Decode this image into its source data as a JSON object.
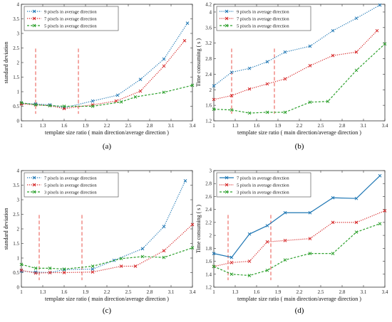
{
  "chart_data": [
    {
      "type": "line",
      "panel_label": "(a)",
      "xlabel": "template size ratio ( main direction/average direction )",
      "ylabel": "standard deviation",
      "xlim": [
        1,
        3.4
      ],
      "ylim": [
        0,
        4
      ],
      "xticks": [
        "1",
        "1.3",
        "1.6",
        "1.9",
        "2.2",
        "2.5",
        "2.8",
        "3.1",
        "3.4"
      ],
      "yticks": [
        "0",
        "0.5",
        "1",
        "1.5",
        "2",
        "2.5",
        "3",
        "3.5",
        "4"
      ],
      "vlines": [
        1.2,
        1.8
      ],
      "legend_position": "top-left",
      "series": [
        {
          "name": "9 pixels in average direction",
          "color": "#1f77b4",
          "marker": "x",
          "style": "dotted",
          "x": [
            1,
            1.2,
            1.4,
            1.6,
            2.0,
            2.35,
            2.67,
            3.0,
            3.33
          ],
          "y": [
            0.6,
            0.58,
            0.55,
            0.45,
            0.68,
            0.88,
            1.42,
            2.12,
            3.35
          ]
        },
        {
          "name": "7 pixels in average direction",
          "color": "#d62728",
          "marker": "x",
          "style": "dotted",
          "x": [
            1,
            1.2,
            1.4,
            1.6,
            2.0,
            2.33,
            2.67,
            3.0,
            3.29
          ],
          "y": [
            0.58,
            0.55,
            0.52,
            0.42,
            0.55,
            0.68,
            1.02,
            1.88,
            2.75
          ]
        },
        {
          "name": "5 pixels in average direction",
          "color": "#2ca02c",
          "marker": "x",
          "style": "dashed",
          "x": [
            1,
            1.2,
            1.4,
            1.6,
            2.0,
            2.4,
            2.6,
            3.0,
            3.4
          ],
          "y": [
            0.62,
            0.55,
            0.52,
            0.5,
            0.5,
            0.65,
            0.82,
            0.98,
            1.22
          ]
        }
      ]
    },
    {
      "type": "line",
      "panel_label": "(b)",
      "xlabel": "template size ratio ( main direction/average direction )",
      "ylabel": "Time consuming ( s )",
      "xlim": [
        1,
        3.4
      ],
      "ylim": [
        1.2,
        4.2
      ],
      "xticks": [
        "1",
        "1.3",
        "1.6",
        "1.9",
        "2.2",
        "2.5",
        "2.8",
        "3.1",
        "3.4"
      ],
      "yticks": [
        "1.2",
        "1.6",
        "2",
        "2.4",
        "2.8",
        "3.2",
        "3.6",
        "4",
        "4.2"
      ],
      "vlines": [
        1.25,
        1.85
      ],
      "legend_position": "top-left",
      "series": [
        {
          "name": "9 pixels in average direction",
          "color": "#1f77b4",
          "marker": "x",
          "style": "dotted",
          "x": [
            1,
            1.25,
            1.5,
            1.75,
            2.0,
            2.35,
            2.67,
            3.0,
            3.33
          ],
          "y": [
            2.1,
            2.45,
            2.55,
            2.72,
            2.97,
            3.12,
            3.52,
            3.84,
            4.18
          ]
        },
        {
          "name": "7 pixels in average direction",
          "color": "#d62728",
          "marker": "x",
          "style": "dotted",
          "x": [
            1,
            1.25,
            1.5,
            1.75,
            2.0,
            2.35,
            2.67,
            3.0,
            3.29
          ],
          "y": [
            1.75,
            1.85,
            2.02,
            2.15,
            2.28,
            2.62,
            2.88,
            2.97,
            3.52
          ]
        },
        {
          "name": "5 pixels in average direction",
          "color": "#2ca02c",
          "marker": "x",
          "style": "dashed",
          "x": [
            1,
            1.25,
            1.5,
            1.75,
            2.0,
            2.35,
            2.6,
            3.0,
            3.4
          ],
          "y": [
            1.5,
            1.48,
            1.4,
            1.42,
            1.42,
            1.68,
            1.7,
            2.5,
            3.18
          ]
        }
      ]
    },
    {
      "type": "line",
      "panel_label": "(c)",
      "xlabel": "template size ratio ( main direction/average direction )",
      "ylabel": "standard deviation",
      "xlim": [
        1,
        3.4
      ],
      "ylim": [
        0,
        4
      ],
      "xticks": [
        "1",
        "1.3",
        "1.6",
        "1.9",
        "2.2",
        "2.5",
        "2.8",
        "3.1",
        "3.4"
      ],
      "yticks": [
        "0",
        "0.5",
        "1",
        "1.5",
        "2",
        "2.5",
        "3",
        "3.5",
        "4"
      ],
      "vlines": [
        1.25,
        1.85
      ],
      "legend_position": "top-left",
      "series": [
        {
          "name": "7 pixels in average direction",
          "color": "#1f77b4",
          "marker": "x",
          "style": "dotted",
          "x": [
            1,
            1.2,
            1.4,
            1.6,
            2.0,
            2.3,
            2.7,
            3.0,
            3.3
          ],
          "y": [
            0.55,
            0.52,
            0.5,
            0.6,
            0.62,
            0.92,
            1.32,
            2.08,
            3.65
          ]
        },
        {
          "name": "5 pixels in average direction",
          "color": "#d62728",
          "marker": "x",
          "style": "dotted",
          "x": [
            1,
            1.2,
            1.4,
            1.6,
            2.0,
            2.4,
            2.6,
            3.0,
            3.4
          ],
          "y": [
            0.58,
            0.48,
            0.5,
            0.5,
            0.52,
            0.72,
            0.72,
            1.25,
            2.15
          ]
        },
        {
          "name": "3 pixels in average direction",
          "color": "#2ca02c",
          "marker": "x",
          "style": "dashed",
          "x": [
            1,
            1.2,
            1.4,
            1.6,
            2.0,
            2.4,
            2.7,
            3.0,
            3.4
          ],
          "y": [
            0.78,
            0.65,
            0.65,
            0.62,
            0.72,
            0.98,
            1.05,
            1.02,
            1.35
          ]
        }
      ]
    },
    {
      "type": "line",
      "panel_label": "(d)",
      "xlabel": "template size ratio ( main direction/average direction )",
      "ylabel": "Time consuming ( s )",
      "xlim": [
        1,
        3.4
      ],
      "ylim": [
        1.2,
        3
      ],
      "xticks": [
        "1",
        "1.3",
        "1.6",
        "1.9",
        "2.2",
        "2.5",
        "2.8",
        "3.1",
        "3.4"
      ],
      "yticks": [
        "1.2",
        "1.4",
        "1.6",
        "1.8",
        "2",
        "2.2",
        "2.4",
        "2.6",
        "2.8",
        "3"
      ],
      "vlines": [
        1.2,
        1.8
      ],
      "legend_position": "top-left",
      "series": [
        {
          "name": "7 pixels in average direction",
          "color": "#1f77b4",
          "marker": "x",
          "style": "solid",
          "x": [
            1,
            1.25,
            1.5,
            1.75,
            2.0,
            2.35,
            2.67,
            3.0,
            3.33
          ],
          "y": [
            1.72,
            1.66,
            2.02,
            2.15,
            2.35,
            2.35,
            2.58,
            2.57,
            2.92
          ]
        },
        {
          "name": "5 pixels in average direction",
          "color": "#d62728",
          "marker": "x",
          "style": "dotted",
          "x": [
            1,
            1.25,
            1.5,
            1.75,
            2.0,
            2.35,
            2.67,
            3.0,
            3.4
          ],
          "y": [
            1.52,
            1.58,
            1.6,
            1.9,
            1.92,
            1.95,
            2.2,
            2.2,
            2.38
          ]
        },
        {
          "name": "3 pixels in average direction",
          "color": "#2ca02c",
          "marker": "x",
          "style": "dashed",
          "x": [
            1,
            1.25,
            1.5,
            1.75,
            2.0,
            2.35,
            2.67,
            3.0,
            3.33
          ],
          "y": [
            1.52,
            1.4,
            1.38,
            1.46,
            1.62,
            1.72,
            1.72,
            2.05,
            2.18
          ]
        }
      ]
    }
  ]
}
